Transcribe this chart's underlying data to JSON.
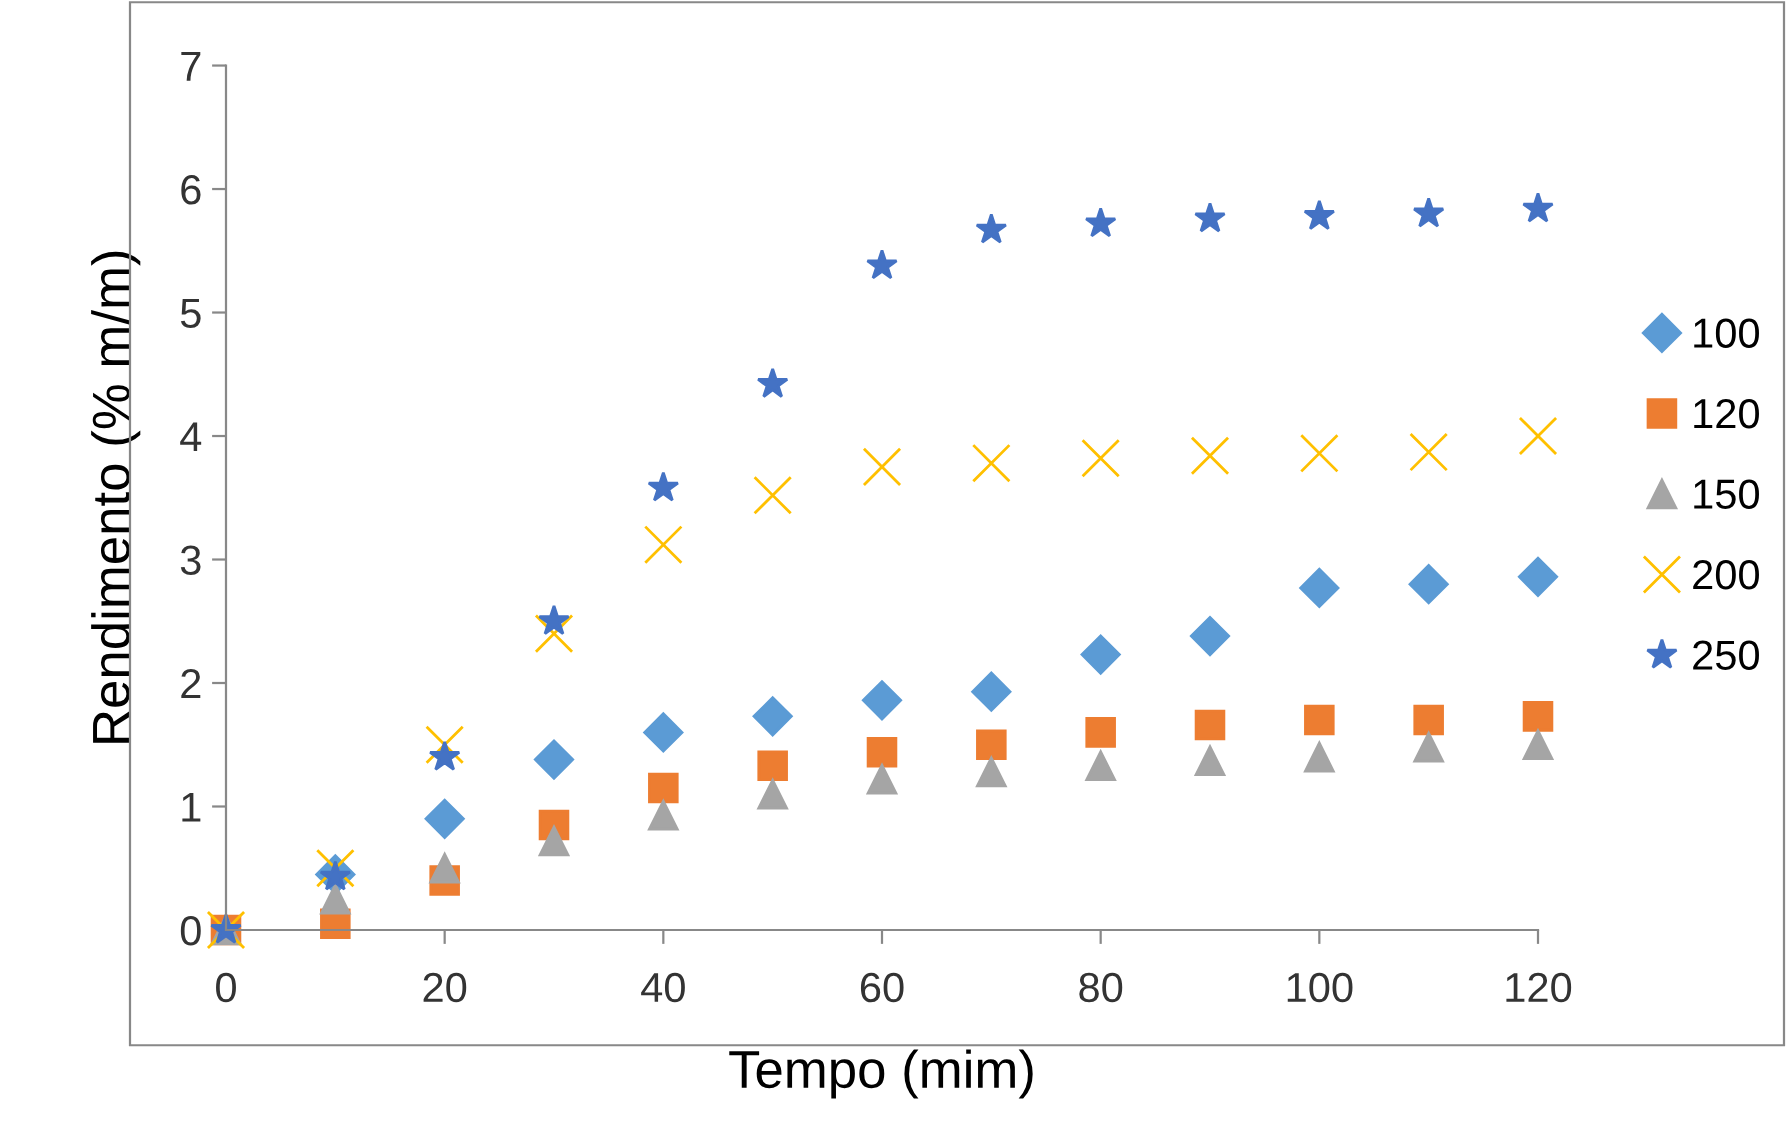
{
  "chart_data": {
    "type": "scatter",
    "xlabel": "Tempo (mim)",
    "ylabel": "Rendimento (% m/m)",
    "x": [
      0,
      10,
      20,
      30,
      40,
      50,
      60,
      70,
      80,
      90,
      100,
      110,
      120
    ],
    "xlim": [
      0,
      120
    ],
    "xticks": [
      0,
      20,
      40,
      60,
      80,
      100,
      120
    ],
    "ylim": [
      0,
      7
    ],
    "yticks": [
      0,
      1,
      2,
      3,
      4,
      5,
      6,
      7
    ],
    "grid": false,
    "legend": "right",
    "series": [
      {
        "name": "100",
        "color": "#5b9bd5",
        "marker": "diamond",
        "values": [
          null,
          0.45,
          0.9,
          1.38,
          1.6,
          1.73,
          1.86,
          1.93,
          2.23,
          2.38,
          2.77,
          2.8,
          2.86
        ]
      },
      {
        "name": "120",
        "color": "#ed7d31",
        "marker": "square",
        "values": [
          0,
          0.05,
          0.4,
          0.85,
          1.15,
          1.33,
          1.44,
          1.5,
          1.6,
          1.66,
          1.7,
          1.7,
          1.73
        ]
      },
      {
        "name": "150",
        "color": "#a5a5a5",
        "marker": "triangle",
        "values": [
          0,
          0.25,
          0.5,
          0.72,
          0.93,
          1.1,
          1.22,
          1.28,
          1.33,
          1.37,
          1.4,
          1.48,
          1.5
        ]
      },
      {
        "name": "200",
        "color": "#ffc000",
        "marker": "cross",
        "values": [
          0,
          0.5,
          1.5,
          2.4,
          3.12,
          3.52,
          3.75,
          3.78,
          3.82,
          3.84,
          3.86,
          3.87,
          4.0
        ]
      },
      {
        "name": "250",
        "color": "#4472c4",
        "marker": "star",
        "values": [
          0,
          0.43,
          1.4,
          2.5,
          3.58,
          4.42,
          5.38,
          5.67,
          5.72,
          5.76,
          5.78,
          5.8,
          5.84
        ]
      }
    ]
  }
}
